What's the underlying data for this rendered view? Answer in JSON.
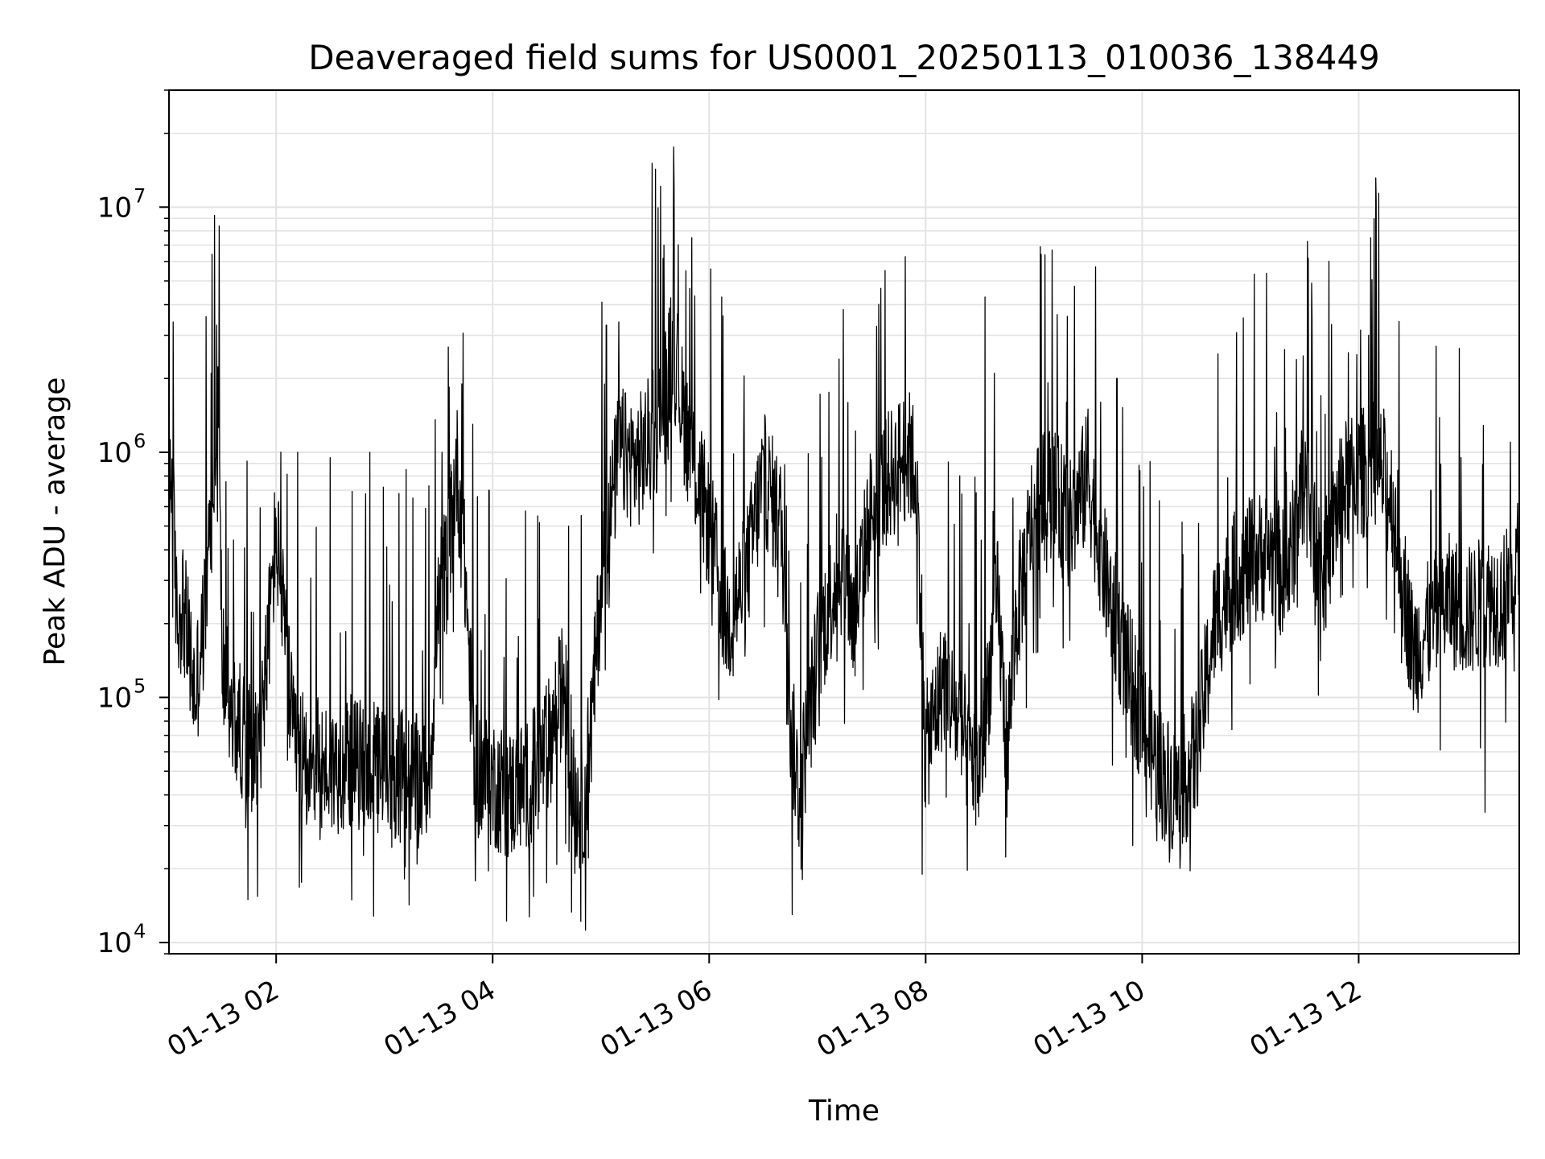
{
  "chart_data": {
    "type": "line",
    "title": "Deaveraged field sums for US0001_20250113_010036_138449",
    "xlabel": "Time",
    "ylabel": "Peak ADU - average",
    "yscale": "log",
    "ylim": [
      9000,
      30000000
    ],
    "xlim": [
      "2025-01-13T01:00:36",
      "2025-01-13T13:29:00"
    ],
    "grid": true,
    "line_color": "#000000",
    "x_ticks": [
      {
        "x": "2025-01-13T02:00",
        "label": "01-13 02"
      },
      {
        "x": "2025-01-13T04:00",
        "label": "01-13 04"
      },
      {
        "x": "2025-01-13T06:00",
        "label": "01-13 06"
      },
      {
        "x": "2025-01-13T08:00",
        "label": "01-13 08"
      },
      {
        "x": "2025-01-13T10:00",
        "label": "01-13 10"
      },
      {
        "x": "2025-01-13T12:00",
        "label": "01-13 12"
      }
    ],
    "y_ticks": [
      {
        "value": 10000,
        "base": "10",
        "exp": "4"
      },
      {
        "value": 100000,
        "base": "10",
        "exp": "5"
      },
      {
        "value": 1000000,
        "base": "10",
        "exp": "6"
      },
      {
        "value": 10000000,
        "base": "10",
        "exp": "7"
      }
    ],
    "series": [
      {
        "x": [
          "2025-01-13T01:00",
          "2025-01-13T01:02",
          "2025-01-13T01:05",
          "2025-01-13T01:08",
          "2025-01-13T01:12",
          "2025-01-13T01:15",
          "2025-01-13T01:20",
          "2025-01-13T01:25",
          "2025-01-13T01:28",
          "2025-01-13T01:30",
          "2025-01-13T01:35",
          "2025-01-13T01:40",
          "2025-01-13T01:45",
          "2025-01-13T01:50",
          "2025-01-13T01:55",
          "2025-01-13T02:00",
          "2025-01-13T02:10",
          "2025-01-13T02:20",
          "2025-01-13T02:30",
          "2025-01-13T02:40",
          "2025-01-13T02:50",
          "2025-01-13T03:00",
          "2025-01-13T03:10",
          "2025-01-13T03:20",
          "2025-01-13T03:25",
          "2025-01-13T03:30",
          "2025-01-13T03:35",
          "2025-01-13T03:40",
          "2025-01-13T03:45",
          "2025-01-13T03:50",
          "2025-01-13T04:00",
          "2025-01-13T04:10",
          "2025-01-13T04:20",
          "2025-01-13T04:30",
          "2025-01-13T04:40",
          "2025-01-13T04:45",
          "2025-01-13T04:50",
          "2025-01-13T04:55",
          "2025-01-13T05:00",
          "2025-01-13T05:10",
          "2025-01-13T05:20",
          "2025-01-13T05:30",
          "2025-01-13T05:35",
          "2025-01-13T05:40",
          "2025-01-13T05:45",
          "2025-01-13T05:50",
          "2025-01-13T06:00",
          "2025-01-13T06:10",
          "2025-01-13T06:20",
          "2025-01-13T06:30",
          "2025-01-13T06:40",
          "2025-01-13T06:45",
          "2025-01-13T06:50",
          "2025-01-13T07:00",
          "2025-01-13T07:05",
          "2025-01-13T07:10",
          "2025-01-13T07:15",
          "2025-01-13T07:20",
          "2025-01-13T07:30",
          "2025-01-13T07:40",
          "2025-01-13T07:50",
          "2025-01-13T07:55",
          "2025-01-13T08:00",
          "2025-01-13T08:10",
          "2025-01-13T08:20",
          "2025-01-13T08:30",
          "2025-01-13T08:35",
          "2025-01-13T08:40",
          "2025-01-13T08:45",
          "2025-01-13T08:50",
          "2025-01-13T09:00",
          "2025-01-13T09:10",
          "2025-01-13T09:20",
          "2025-01-13T09:30",
          "2025-01-13T09:40",
          "2025-01-13T09:50",
          "2025-01-13T10:00",
          "2025-01-13T10:10",
          "2025-01-13T10:20",
          "2025-01-13T10:30",
          "2025-01-13T10:40",
          "2025-01-13T10:50",
          "2025-01-13T11:00",
          "2025-01-13T11:10",
          "2025-01-13T11:20",
          "2025-01-13T11:30",
          "2025-01-13T11:40",
          "2025-01-13T11:50",
          "2025-01-13T12:00",
          "2025-01-13T12:10",
          "2025-01-13T12:20",
          "2025-01-13T12:30",
          "2025-01-13T12:40",
          "2025-01-13T12:50",
          "2025-01-13T13:00",
          "2025-01-13T13:10",
          "2025-01-13T13:20",
          "2025-01-13T13:28"
        ],
        "y": [
          300000,
          900000,
          200000,
          250000,
          150000,
          100000,
          200000,
          700000,
          1500000,
          150000,
          80000,
          75000,
          65000,
          60000,
          150000,
          480000,
          60000,
          55000,
          50000,
          55000,
          52000,
          50000,
          48000,
          45000,
          50000,
          250000,
          350000,
          900000,
          300000,
          50000,
          45000,
          40000,
          45000,
          60000,
          120000,
          40000,
          35000,
          80000,
          300000,
          1000000,
          900000,
          1200000,
          1600000,
          2800000,
          1500000,
          1000000,
          500000,
          200000,
          300000,
          800000,
          500000,
          80000,
          40000,
          150000,
          220000,
          300000,
          350000,
          200000,
          600000,
          800000,
          1000000,
          800000,
          60000,
          120000,
          70000,
          50000,
          120000,
          250000,
          60000,
          200000,
          600000,
          700000,
          500000,
          800000,
          300000,
          150000,
          80000,
          50000,
          40000,
          60000,
          200000,
          300000,
          350000,
          400000,
          300000,
          800000,
          300000,
          700000,
          800000,
          900000,
          600000,
          150000,
          200000,
          250000,
          220000,
          250000,
          250000,
          350000
        ],
        "spikes": [
          [
            "2025-01-13T01:03",
            3400000
          ],
          [
            "2025-01-13T01:24",
            2100000
          ],
          [
            "2025-01-13T01:27",
            3300000
          ],
          [
            "2025-01-13T02:12",
            1000000
          ],
          [
            "2025-01-13T02:30",
            950000
          ],
          [
            "2025-01-13T02:52",
            1000000
          ],
          [
            "2025-01-13T03:12",
            850000
          ],
          [
            "2025-01-13T03:32",
            1000000
          ],
          [
            "2025-01-13T03:43",
            1900000
          ],
          [
            "2025-01-13T03:49",
            1300000
          ],
          [
            "2025-01-13T03:58",
            700000
          ],
          [
            "2025-01-13T04:25",
            550000
          ],
          [
            "2025-01-13T04:42",
            500000
          ],
          [
            "2025-01-13T05:03",
            3300000
          ],
          [
            "2025-01-13T05:10",
            3400000
          ],
          [
            "2025-01-13T05:35",
            7000000
          ],
          [
            "2025-01-13T05:40",
            6200000
          ],
          [
            "2025-01-13T05:47",
            5500000
          ],
          [
            "2025-01-13T06:07",
            4300000
          ],
          [
            "2025-01-13T06:46",
            13000
          ],
          [
            "2025-01-13T07:12",
            2400000
          ],
          [
            "2025-01-13T07:35",
            1200000
          ],
          [
            "2025-01-13T07:52",
            1400000
          ],
          [
            "2025-01-13T07:58",
            19000
          ],
          [
            "2025-01-13T08:24",
            200000
          ],
          [
            "2025-01-13T08:33",
            4300000
          ],
          [
            "2025-01-13T08:38",
            2100000
          ],
          [
            "2025-01-13T09:18",
            1600000
          ],
          [
            "2025-01-13T09:30",
            1500000
          ],
          [
            "2025-01-13T09:37",
            1600000
          ],
          [
            "2025-01-13T09:46",
            2000000
          ],
          [
            "2025-01-13T10:08",
            26000
          ],
          [
            "2025-01-13T10:23",
            27000
          ],
          [
            "2025-01-13T10:50",
            500000
          ],
          [
            "2025-01-13T11:20",
            830000
          ],
          [
            "2025-01-13T11:39",
            1700000
          ],
          [
            "2025-01-13T11:59",
            2500000
          ],
          [
            "2025-01-13T12:08",
            1600000
          ],
          [
            "2025-01-13T12:14",
            1500000
          ],
          [
            "2025-01-13T12:40",
            700000
          ],
          [
            "2025-01-13T13:10",
            34000
          ],
          [
            "2025-01-13T13:24",
            1100000
          ]
        ]
      }
    ]
  }
}
